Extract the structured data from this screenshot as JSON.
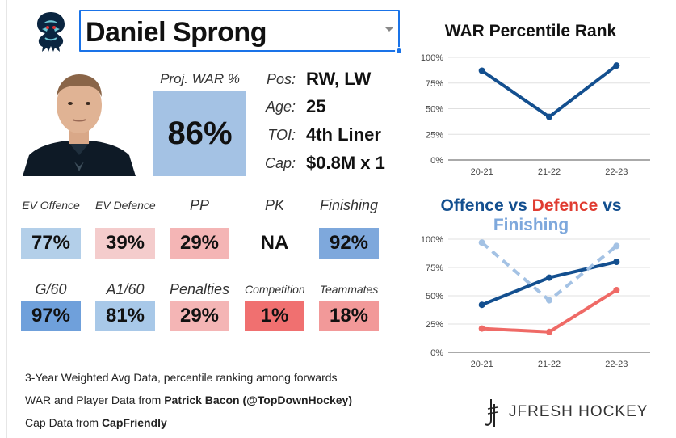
{
  "player": {
    "name": "Daniel Sprong",
    "proj_war_label": "Proj. WAR %",
    "proj_war_value": "86%",
    "info": [
      {
        "label": "Pos:",
        "value": "RW, LW"
      },
      {
        "label": "Age:",
        "value": "25"
      },
      {
        "label": "TOI:",
        "value": "4th Liner"
      },
      {
        "label": "Cap:",
        "value": "$0.8M x 1"
      }
    ]
  },
  "stats_row1": [
    {
      "label": "EV Offence",
      "value": "77%",
      "color": "#b3cfe9"
    },
    {
      "label": "EV Defence",
      "value": "39%",
      "color": "#f4cccc"
    },
    {
      "label": "PP",
      "value": "29%",
      "color": "#f4b5b5"
    },
    {
      "label": "PK",
      "value": "NA",
      "color": "#ffffff"
    },
    {
      "label": "Finishing",
      "value": "92%",
      "color": "#7ea8dc"
    }
  ],
  "stats_row2": [
    {
      "label": "G/60",
      "value": "97%",
      "color": "#6fa0db"
    },
    {
      "label": "A1/60",
      "value": "81%",
      "color": "#a8c8e8"
    },
    {
      "label": "Penalties",
      "value": "29%",
      "color": "#f4b5b5"
    },
    {
      "label": "Competition",
      "value": "1%",
      "color": "#f07070"
    },
    {
      "label": "Teammates",
      "value": "18%",
      "color": "#f29999"
    }
  ],
  "footer": {
    "line1": "3-Year Weighted Avg Data, percentile ranking among forwards",
    "line2_prefix": "WAR and Player Data from ",
    "line2_bold": "Patrick Bacon (@TopDownHockey)",
    "line3_prefix": "Cap Data from ",
    "line3_bold": "CapFriendly"
  },
  "brand": {
    "name": "JFRESH HOCKEY"
  },
  "chart_data": [
    {
      "type": "line",
      "title": "WAR Percentile Rank",
      "categories": [
        "20-21",
        "21-22",
        "22-23"
      ],
      "series": [
        {
          "values": [
            87,
            42,
            92
          ],
          "color": "#134f8f",
          "dashed": false
        }
      ],
      "ylim": [
        0,
        100
      ],
      "yticks": [
        "0%",
        "25%",
        "50%",
        "75%",
        "100%"
      ],
      "grid": true
    },
    {
      "type": "line",
      "title_parts": [
        {
          "text": "Offence",
          "color": "#134f8f"
        },
        {
          "text": " vs ",
          "color": "#134f8f"
        },
        {
          "text": "Defence",
          "color": "#e03c31"
        },
        {
          "text": " vs ",
          "color": "#134f8f"
        },
        {
          "text": "Finishing",
          "color": "#7ea8dc"
        }
      ],
      "categories": [
        "20-21",
        "21-22",
        "22-23"
      ],
      "series": [
        {
          "values": [
            42,
            66,
            80
          ],
          "color": "#134f8f",
          "dashed": false
        },
        {
          "values": [
            21,
            18,
            55
          ],
          "color": "#ef6a66",
          "dashed": false
        },
        {
          "values": [
            97,
            46,
            94
          ],
          "color": "#a4c2e4",
          "dashed": true
        }
      ],
      "ylim": [
        0,
        100
      ],
      "yticks": [
        "0%",
        "25%",
        "50%",
        "75%",
        "100%"
      ],
      "grid": true
    }
  ]
}
